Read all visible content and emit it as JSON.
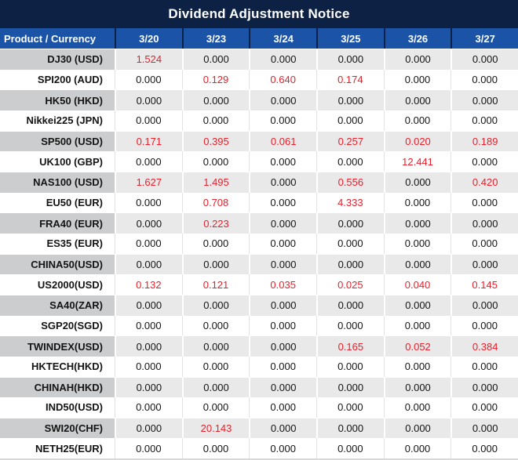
{
  "title": "Dividend Adjustment Notice",
  "colors": {
    "title_bg": "#0d2145",
    "header_bg": "#1b53a6",
    "row_gray": "#e9e9e9",
    "label_gray": "#cbcdce",
    "grid_light": "#e2e2e2",
    "red": "#e8202c",
    "text": "#141414"
  },
  "chart_data": {
    "type": "table",
    "title": "Dividend Adjustment Notice",
    "product_header": "Product / Currency",
    "columns": [
      "3/20",
      "3/23",
      "3/24",
      "3/25",
      "3/26",
      "3/27"
    ],
    "rows": [
      {
        "product": "DJ30 (USD)",
        "values": [
          "1.524",
          "0.000",
          "0.000",
          "0.000",
          "0.000",
          "0.000"
        ],
        "red": [
          true,
          false,
          false,
          false,
          false,
          false
        ]
      },
      {
        "product": "SPI200 (AUD)",
        "values": [
          "0.000",
          "0.129",
          "0.640",
          "0.174",
          "0.000",
          "0.000"
        ],
        "red": [
          false,
          true,
          true,
          true,
          false,
          false
        ]
      },
      {
        "product": "HK50 (HKD)",
        "values": [
          "0.000",
          "0.000",
          "0.000",
          "0.000",
          "0.000",
          "0.000"
        ],
        "red": [
          false,
          false,
          false,
          false,
          false,
          false
        ]
      },
      {
        "product": "Nikkei225 (JPN)",
        "values": [
          "0.000",
          "0.000",
          "0.000",
          "0.000",
          "0.000",
          "0.000"
        ],
        "red": [
          false,
          false,
          false,
          false,
          false,
          false
        ]
      },
      {
        "product": "SP500 (USD)",
        "values": [
          "0.171",
          "0.395",
          "0.061",
          "0.257",
          "0.020",
          "0.189"
        ],
        "red": [
          true,
          true,
          true,
          true,
          true,
          true
        ]
      },
      {
        "product": "UK100 (GBP)",
        "values": [
          "0.000",
          "0.000",
          "0.000",
          "0.000",
          "12.441",
          "0.000"
        ],
        "red": [
          false,
          false,
          false,
          false,
          true,
          false
        ]
      },
      {
        "product": "NAS100 (USD)",
        "values": [
          "1.627",
          "1.495",
          "0.000",
          "0.556",
          "0.000",
          "0.420"
        ],
        "red": [
          true,
          true,
          false,
          true,
          false,
          true
        ]
      },
      {
        "product": "EU50 (EUR)",
        "values": [
          "0.000",
          "0.708",
          "0.000",
          "4.333",
          "0.000",
          "0.000"
        ],
        "red": [
          false,
          true,
          false,
          true,
          false,
          false
        ]
      },
      {
        "product": "FRA40 (EUR)",
        "values": [
          "0.000",
          "0.223",
          "0.000",
          "0.000",
          "0.000",
          "0.000"
        ],
        "red": [
          false,
          true,
          false,
          false,
          false,
          false
        ]
      },
      {
        "product": "ES35 (EUR)",
        "values": [
          "0.000",
          "0.000",
          "0.000",
          "0.000",
          "0.000",
          "0.000"
        ],
        "red": [
          false,
          false,
          false,
          false,
          false,
          false
        ]
      },
      {
        "product": "CHINA50(USD)",
        "values": [
          "0.000",
          "0.000",
          "0.000",
          "0.000",
          "0.000",
          "0.000"
        ],
        "red": [
          false,
          false,
          false,
          false,
          false,
          false
        ]
      },
      {
        "product": "US2000(USD)",
        "values": [
          "0.132",
          "0.121",
          "0.035",
          "0.025",
          "0.040",
          "0.145"
        ],
        "red": [
          true,
          true,
          true,
          true,
          true,
          true
        ]
      },
      {
        "product": "SA40(ZAR)",
        "values": [
          "0.000",
          "0.000",
          "0.000",
          "0.000",
          "0.000",
          "0.000"
        ],
        "red": [
          false,
          false,
          false,
          false,
          false,
          false
        ]
      },
      {
        "product": "SGP20(SGD)",
        "values": [
          "0.000",
          "0.000",
          "0.000",
          "0.000",
          "0.000",
          "0.000"
        ],
        "red": [
          false,
          false,
          false,
          false,
          false,
          false
        ]
      },
      {
        "product": "TWINDEX(USD)",
        "values": [
          "0.000",
          "0.000",
          "0.000",
          "0.165",
          "0.052",
          "0.384"
        ],
        "red": [
          false,
          false,
          false,
          true,
          true,
          true
        ]
      },
      {
        "product": "HKTECH(HKD)",
        "values": [
          "0.000",
          "0.000",
          "0.000",
          "0.000",
          "0.000",
          "0.000"
        ],
        "red": [
          false,
          false,
          false,
          false,
          false,
          false
        ]
      },
      {
        "product": "CHINAH(HKD)",
        "values": [
          "0.000",
          "0.000",
          "0.000",
          "0.000",
          "0.000",
          "0.000"
        ],
        "red": [
          false,
          false,
          false,
          false,
          false,
          false
        ]
      },
      {
        "product": "IND50(USD)",
        "values": [
          "0.000",
          "0.000",
          "0.000",
          "0.000",
          "0.000",
          "0.000"
        ],
        "red": [
          false,
          false,
          false,
          false,
          false,
          false
        ]
      },
      {
        "product": "SWI20(CHF)",
        "values": [
          "0.000",
          "20.143",
          "0.000",
          "0.000",
          "0.000",
          "0.000"
        ],
        "red": [
          false,
          true,
          false,
          false,
          false,
          false
        ]
      },
      {
        "product": "NETH25(EUR)",
        "values": [
          "0.000",
          "0.000",
          "0.000",
          "0.000",
          "0.000",
          "0.000"
        ],
        "red": [
          false,
          false,
          false,
          false,
          false,
          false
        ]
      }
    ]
  }
}
